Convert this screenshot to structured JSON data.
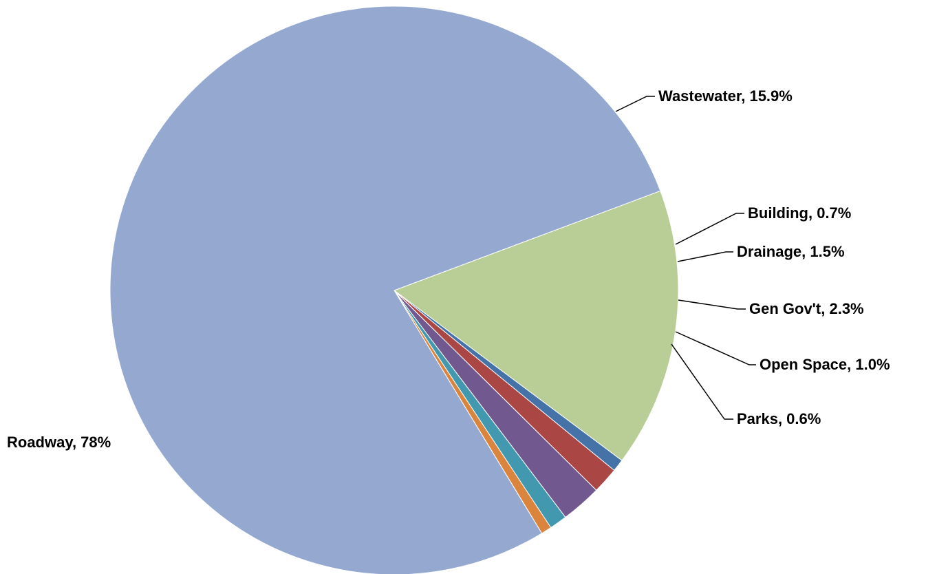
{
  "chart_data": {
    "type": "pie",
    "title": "",
    "slices": [
      {
        "label": "Wastewater",
        "value": 15.9,
        "display": "Wastewater, 15.9%",
        "color": "#B9CD96"
      },
      {
        "label": "Building",
        "value": 0.7,
        "display": "Building, 0.7%",
        "color": "#4572A7"
      },
      {
        "label": "Drainage",
        "value": 1.5,
        "display": "Drainage, 1.5%",
        "color": "#AA4643"
      },
      {
        "label": "Gen Gov't",
        "value": 2.3,
        "display": "Gen Gov't, 2.3%",
        "color": "#71588F"
      },
      {
        "label": "Open Space",
        "value": 1.0,
        "display": "Open Space, 1.0%",
        "color": "#4198AF"
      },
      {
        "label": "Parks",
        "value": 0.6,
        "display": "Parks, 0.6%",
        "color": "#DB843D"
      },
      {
        "label": "Roadway",
        "value": 78,
        "display": "Roadway, 78%",
        "color": "#95A9D0"
      }
    ],
    "legend": "none",
    "data_labels": "outside with leader lines"
  }
}
